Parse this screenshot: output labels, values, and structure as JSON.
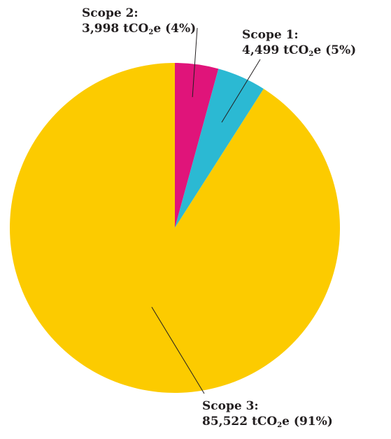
{
  "chart_data": {
    "type": "pie",
    "slices": [
      {
        "name": "Scope 2",
        "value": 3998,
        "percent": 4,
        "color": "#e0147a",
        "label": {
          "title": "Scope 2:",
          "amount": "3,998",
          "unit_pre": "tCO",
          "unit_sub": "2",
          "unit_post": "e",
          "pct": "(4%)"
        }
      },
      {
        "name": "Scope 1",
        "value": 4499,
        "percent": 5,
        "color": "#2bb9d3",
        "label": {
          "title": "Scope 1:",
          "amount": "4,499",
          "unit_pre": "tCO",
          "unit_sub": "2",
          "unit_post": "e",
          "pct": "(5%)"
        }
      },
      {
        "name": "Scope 3",
        "value": 85522,
        "percent": 91,
        "color": "#fccb00",
        "label": {
          "title": "Scope 3:",
          "amount": "85,522",
          "unit_pre": "tCO",
          "unit_sub": "2",
          "unit_post": "e",
          "pct": "(91%)"
        }
      }
    ]
  }
}
